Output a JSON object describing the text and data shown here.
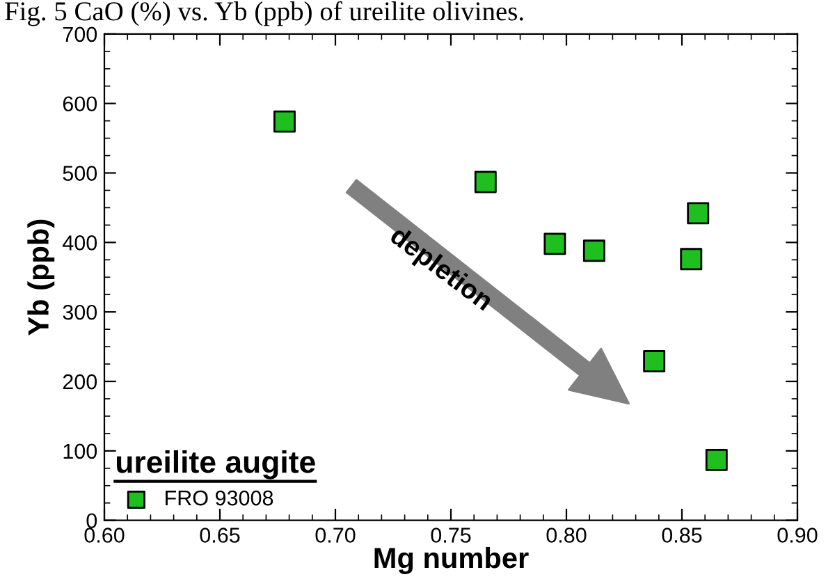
{
  "chart_data": {
    "type": "scatter",
    "title": "Fig. 5 CaO (%) vs. Yb (ppb) of ureilite olivines.",
    "xlabel": "Mg number",
    "ylabel": "Yb (ppb)",
    "legend_title": "ureilite augite",
    "series": [
      {
        "name": "FRO 93008",
        "color": "#1fbf1f",
        "x": [
          0.678,
          0.765,
          0.795,
          0.812,
          0.857,
          0.854,
          0.838,
          0.865
        ],
        "values": [
          574,
          487,
          398,
          388,
          442,
          376,
          229,
          87
        ]
      }
    ],
    "annotations": [
      "depletion"
    ],
    "marker": "square",
    "legend": "bottom left",
    "grid": false,
    "xlim": [
      0.6,
      0.9
    ],
    "ylim": [
      0,
      700
    ],
    "xticks": [
      {
        "value": 0.6,
        "label": "0.60"
      },
      {
        "value": 0.65,
        "label": "0.65"
      },
      {
        "value": 0.7,
        "label": "0.70"
      },
      {
        "value": 0.75,
        "label": "0.75"
      },
      {
        "value": 0.8,
        "label": "0.80"
      },
      {
        "value": 0.85,
        "label": "0.85"
      },
      {
        "value": 0.9,
        "label": "0.90"
      }
    ],
    "yticks": [
      0,
      100,
      200,
      300,
      400,
      500,
      600,
      700
    ]
  }
}
